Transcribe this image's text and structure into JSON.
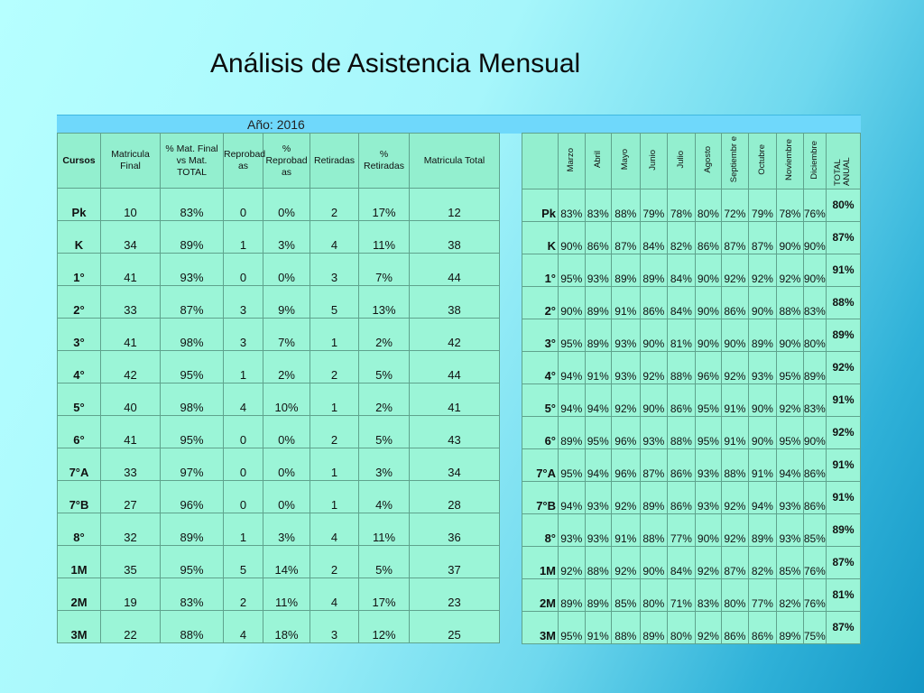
{
  "title": "Análisis de Asistencia Mensual",
  "year_label": "Año: 2016",
  "left_headers": {
    "cursos": "Cursos",
    "matricula_final": "Matricula Final",
    "pct_final_total": "% Mat. Final vs Mat. TOTAL",
    "reprobadas": "Reprobad as",
    "pct_reprobadas": "% Reprobad as",
    "retiradas": "Retiradas",
    "pct_retiradas": "% Retiradas",
    "matricula_total": "Matricula Total"
  },
  "right_headers": {
    "marzo": "Marzo",
    "abril": "Abril",
    "mayo": "Mayo",
    "junio": "Junio",
    "julio": "Julio",
    "agosto": "Agosto",
    "septiembre": "Septiembr e",
    "octubre": "Octubre",
    "noviembre": "Noviembre",
    "diciembre": "Diciembre",
    "total_anual": "TOTAL ANUAL"
  },
  "rows": [
    {
      "course": "Pk",
      "mat_final": "10",
      "pct_final": "83%",
      "reprob": "0",
      "pct_reprob": "0%",
      "retir": "2",
      "pct_retir": "17%",
      "mat_total": "12",
      "marzo": "83%",
      "abril": "83%",
      "mayo": "88%",
      "junio": "79%",
      "julio": "78%",
      "agosto": "80%",
      "septiembre": "72%",
      "octubre": "79%",
      "noviembre": "78%",
      "diciembre": "76%",
      "total": "80%"
    },
    {
      "course": "K",
      "mat_final": "34",
      "pct_final": "89%",
      "reprob": "1",
      "pct_reprob": "3%",
      "retir": "4",
      "pct_retir": "11%",
      "mat_total": "38",
      "marzo": "90%",
      "abril": "86%",
      "mayo": "87%",
      "junio": "84%",
      "julio": "82%",
      "agosto": "86%",
      "septiembre": "87%",
      "octubre": "87%",
      "noviembre": "90%",
      "diciembre": "90%",
      "total": "87%"
    },
    {
      "course": "1°",
      "mat_final": "41",
      "pct_final": "93%",
      "reprob": "0",
      "pct_reprob": "0%",
      "retir": "3",
      "pct_retir": "7%",
      "mat_total": "44",
      "marzo": "95%",
      "abril": "93%",
      "mayo": "89%",
      "junio": "89%",
      "julio": "84%",
      "agosto": "90%",
      "septiembre": "92%",
      "octubre": "92%",
      "noviembre": "92%",
      "diciembre": "90%",
      "total": "91%"
    },
    {
      "course": "2°",
      "mat_final": "33",
      "pct_final": "87%",
      "reprob": "3",
      "pct_reprob": "9%",
      "retir": "5",
      "pct_retir": "13%",
      "mat_total": "38",
      "marzo": "90%",
      "abril": "89%",
      "mayo": "91%",
      "junio": "86%",
      "julio": "84%",
      "agosto": "90%",
      "septiembre": "86%",
      "octubre": "90%",
      "noviembre": "88%",
      "diciembre": "83%",
      "total": "88%"
    },
    {
      "course": "3°",
      "mat_final": "41",
      "pct_final": "98%",
      "reprob": "3",
      "pct_reprob": "7%",
      "retir": "1",
      "pct_retir": "2%",
      "mat_total": "42",
      "marzo": "95%",
      "abril": "89%",
      "mayo": "93%",
      "junio": "90%",
      "julio": "81%",
      "agosto": "90%",
      "septiembre": "90%",
      "octubre": "89%",
      "noviembre": "90%",
      "diciembre": "80%",
      "total": "89%"
    },
    {
      "course": "4°",
      "mat_final": "42",
      "pct_final": "95%",
      "reprob": "1",
      "pct_reprob": "2%",
      "retir": "2",
      "pct_retir": "5%",
      "mat_total": "44",
      "marzo": "94%",
      "abril": "91%",
      "mayo": "93%",
      "junio": "92%",
      "julio": "88%",
      "agosto": "96%",
      "septiembre": "92%",
      "octubre": "93%",
      "noviembre": "95%",
      "diciembre": "89%",
      "total": "92%"
    },
    {
      "course": "5°",
      "mat_final": "40",
      "pct_final": "98%",
      "reprob": "4",
      "pct_reprob": "10%",
      "retir": "1",
      "pct_retir": "2%",
      "mat_total": "41",
      "marzo": "94%",
      "abril": "94%",
      "mayo": "92%",
      "junio": "90%",
      "julio": "86%",
      "agosto": "95%",
      "septiembre": "91%",
      "octubre": "90%",
      "noviembre": "92%",
      "diciembre": "83%",
      "total": "91%"
    },
    {
      "course": "6°",
      "mat_final": "41",
      "pct_final": "95%",
      "reprob": "0",
      "pct_reprob": "0%",
      "retir": "2",
      "pct_retir": "5%",
      "mat_total": "43",
      "marzo": "89%",
      "abril": "95%",
      "mayo": "96%",
      "junio": "93%",
      "julio": "88%",
      "agosto": "95%",
      "septiembre": "91%",
      "octubre": "90%",
      "noviembre": "95%",
      "diciembre": "90%",
      "total": "92%"
    },
    {
      "course": "7°A",
      "mat_final": "33",
      "pct_final": "97%",
      "reprob": "0",
      "pct_reprob": "0%",
      "retir": "1",
      "pct_retir": "3%",
      "mat_total": "34",
      "marzo": "95%",
      "abril": "94%",
      "mayo": "96%",
      "junio": "87%",
      "julio": "86%",
      "agosto": "93%",
      "septiembre": "88%",
      "octubre": "91%",
      "noviembre": "94%",
      "diciembre": "86%",
      "total": "91%"
    },
    {
      "course": "7°B",
      "mat_final": "27",
      "pct_final": "96%",
      "reprob": "0",
      "pct_reprob": "0%",
      "retir": "1",
      "pct_retir": "4%",
      "mat_total": "28",
      "marzo": "94%",
      "abril": "93%",
      "mayo": "92%",
      "junio": "89%",
      "julio": "86%",
      "agosto": "93%",
      "septiembre": "92%",
      "octubre": "94%",
      "noviembre": "93%",
      "diciembre": "86%",
      "total": "91%"
    },
    {
      "course": "8°",
      "mat_final": "32",
      "pct_final": "89%",
      "reprob": "1",
      "pct_reprob": "3%",
      "retir": "4",
      "pct_retir": "11%",
      "mat_total": "36",
      "marzo": "93%",
      "abril": "93%",
      "mayo": "91%",
      "junio": "88%",
      "julio": "77%",
      "agosto": "90%",
      "septiembre": "92%",
      "octubre": "89%",
      "noviembre": "93%",
      "diciembre": "85%",
      "total": "89%"
    },
    {
      "course": "1M",
      "mat_final": "35",
      "pct_final": "95%",
      "reprob": "5",
      "pct_reprob": "14%",
      "retir": "2",
      "pct_retir": "5%",
      "mat_total": "37",
      "marzo": "92%",
      "abril": "88%",
      "mayo": "92%",
      "junio": "90%",
      "julio": "84%",
      "agosto": "92%",
      "septiembre": "87%",
      "octubre": "82%",
      "noviembre": "85%",
      "diciembre": "76%",
      "total": "87%"
    },
    {
      "course": "2M",
      "mat_final": "19",
      "pct_final": "83%",
      "reprob": "2",
      "pct_reprob": "11%",
      "retir": "4",
      "pct_retir": "17%",
      "mat_total": "23",
      "marzo": "89%",
      "abril": "89%",
      "mayo": "85%",
      "junio": "80%",
      "julio": "71%",
      "agosto": "83%",
      "septiembre": "80%",
      "octubre": "77%",
      "noviembre": "82%",
      "diciembre": "76%",
      "total": "81%"
    },
    {
      "course": "3M",
      "mat_final": "22",
      "pct_final": "88%",
      "reprob": "4",
      "pct_reprob": "18%",
      "retir": "3",
      "pct_retir": "12%",
      "mat_total": "25",
      "marzo": "95%",
      "abril": "91%",
      "mayo": "88%",
      "junio": "89%",
      "julio": "80%",
      "agosto": "92%",
      "septiembre": "86%",
      "octubre": "86%",
      "noviembre": "89%",
      "diciembre": "75%",
      "total": "87%"
    }
  ]
}
